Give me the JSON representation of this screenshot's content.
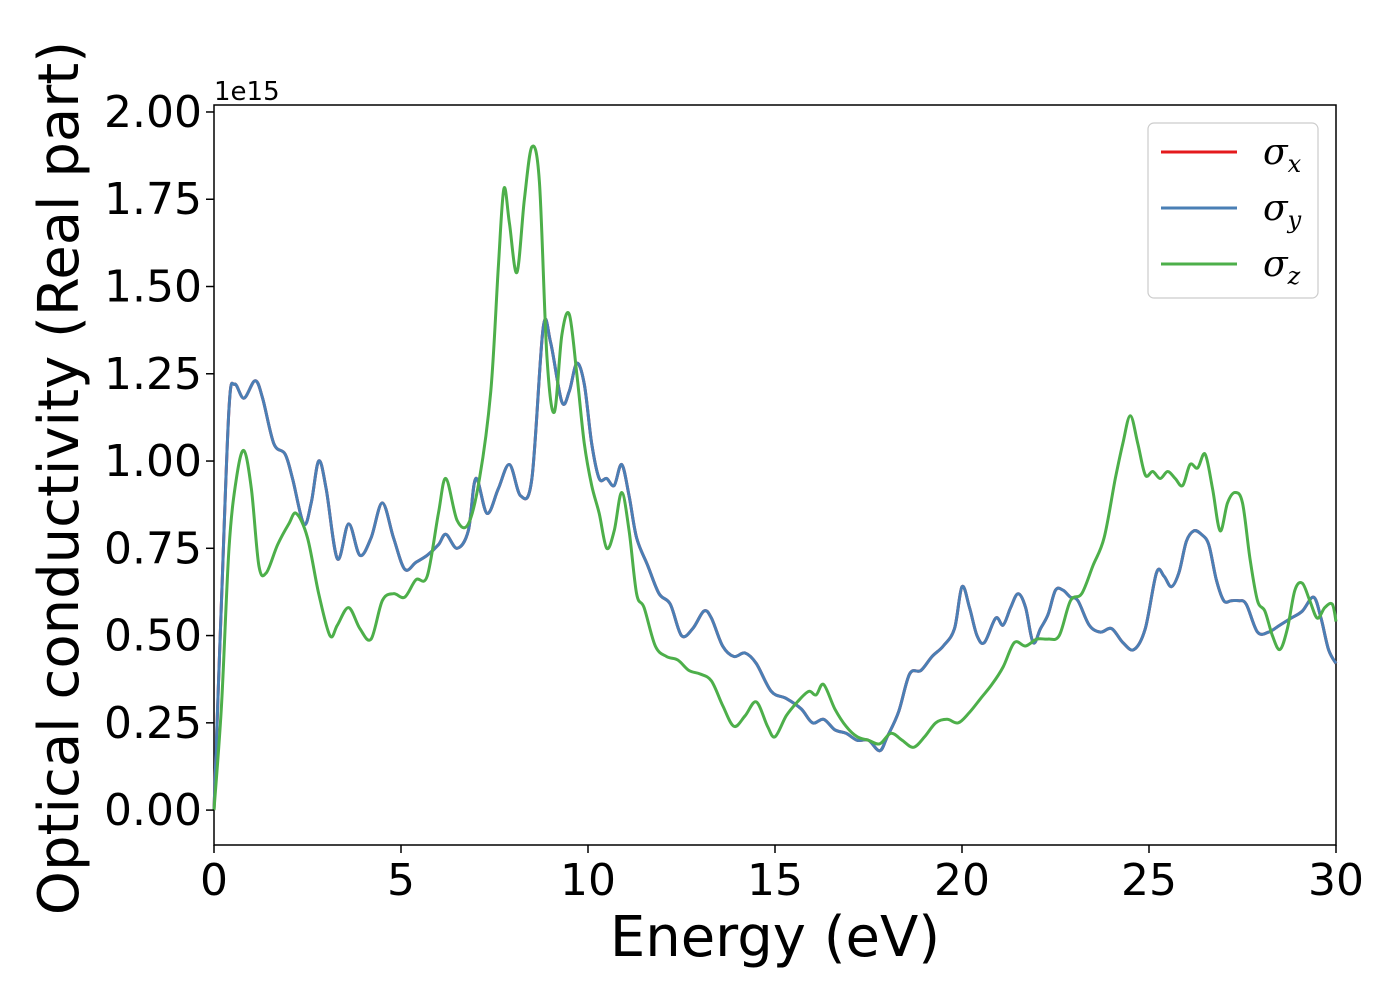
{
  "chart_data": {
    "type": "line",
    "title": "",
    "xlabel": "Energy (eV)",
    "ylabel": "Optical conductivity (Real part)",
    "y_offset_label": "1e15",
    "xlim": [
      0,
      30
    ],
    "ylim": [
      -0.1,
      2.02
    ],
    "x_ticks": [
      0,
      5,
      10,
      15,
      20,
      25,
      30
    ],
    "x_tick_labels": [
      "0",
      "5",
      "10",
      "15",
      "20",
      "25",
      "30"
    ],
    "y_ticks": [
      0,
      0.25,
      0.5,
      0.75,
      1.0,
      1.25,
      1.5,
      1.75,
      2.0
    ],
    "y_tick_labels": [
      "0.00",
      "0.25",
      "0.50",
      "0.75",
      "1.00",
      "1.25",
      "1.50",
      "1.75",
      "2.00"
    ],
    "grid": false,
    "legend_position": "top-right",
    "series": [
      {
        "name": "σ_x",
        "symbol": "σ",
        "subscript": "x",
        "color": "#e41a1c",
        "x": [
          0,
          0.2,
          0.4,
          0.55,
          0.8,
          1.1,
          1.3,
          1.6,
          1.9,
          2.1,
          2.4,
          2.6,
          2.8,
          3.0,
          3.3,
          3.6,
          3.9,
          4.2,
          4.5,
          4.8,
          5.1,
          5.4,
          5.7,
          6.0,
          6.2,
          6.5,
          6.8,
          7.0,
          7.3,
          7.6,
          7.9,
          8.2,
          8.5,
          8.8,
          9.0,
          9.3,
          9.5,
          9.7,
          9.9,
          10.1,
          10.3,
          10.5,
          10.7,
          10.9,
          11.1,
          11.3,
          11.6,
          11.9,
          12.2,
          12.5,
          12.8,
          13.1,
          13.3,
          13.6,
          13.9,
          14.2,
          14.5,
          14.9,
          15.3,
          15.7,
          16.0,
          16.3,
          16.6,
          16.9,
          17.2,
          17.5,
          17.8,
          18.0,
          18.3,
          18.6,
          18.9,
          19.2,
          19.5,
          19.8,
          20.0,
          20.2,
          20.4,
          20.6,
          20.9,
          21.1,
          21.3,
          21.5,
          21.7,
          21.9,
          22.1,
          22.3,
          22.5,
          22.7,
          22.9,
          23.1,
          23.4,
          23.7,
          24.0,
          24.3,
          24.6,
          24.9,
          25.2,
          25.4,
          25.6,
          25.8,
          26.0,
          26.2,
          26.4,
          26.6,
          26.8,
          27.0,
          27.2,
          27.4,
          27.6,
          27.9,
          28.2,
          28.5,
          28.8,
          29.1,
          29.4,
          29.6,
          29.8,
          30
        ],
        "y": [
          0,
          0.6,
          1.15,
          1.22,
          1.18,
          1.23,
          1.18,
          1.05,
          1.02,
          0.95,
          0.82,
          0.88,
          1.0,
          0.92,
          0.72,
          0.82,
          0.73,
          0.78,
          0.88,
          0.78,
          0.69,
          0.71,
          0.73,
          0.76,
          0.79,
          0.75,
          0.8,
          0.95,
          0.85,
          0.92,
          0.99,
          0.9,
          0.95,
          1.38,
          1.34,
          1.17,
          1.2,
          1.28,
          1.22,
          1.05,
          0.95,
          0.95,
          0.93,
          0.99,
          0.9,
          0.78,
          0.7,
          0.62,
          0.59,
          0.5,
          0.52,
          0.57,
          0.55,
          0.47,
          0.44,
          0.45,
          0.42,
          0.34,
          0.32,
          0.29,
          0.25,
          0.26,
          0.23,
          0.22,
          0.2,
          0.2,
          0.17,
          0.21,
          0.28,
          0.39,
          0.4,
          0.44,
          0.47,
          0.52,
          0.64,
          0.58,
          0.5,
          0.48,
          0.55,
          0.53,
          0.58,
          0.62,
          0.58,
          0.48,
          0.52,
          0.56,
          0.63,
          0.63,
          0.61,
          0.6,
          0.53,
          0.51,
          0.52,
          0.48,
          0.46,
          0.52,
          0.68,
          0.67,
          0.64,
          0.68,
          0.77,
          0.8,
          0.79,
          0.76,
          0.66,
          0.6,
          0.6,
          0.6,
          0.59,
          0.51,
          0.51,
          0.53,
          0.55,
          0.57,
          0.61,
          0.55,
          0.46,
          0.42
        ]
      },
      {
        "name": "σ_y",
        "symbol": "σ",
        "subscript": "y",
        "color": "#4a7fb5",
        "x": [
          0,
          0.2,
          0.4,
          0.55,
          0.8,
          1.1,
          1.3,
          1.6,
          1.9,
          2.1,
          2.4,
          2.6,
          2.8,
          3.0,
          3.3,
          3.6,
          3.9,
          4.2,
          4.5,
          4.8,
          5.1,
          5.4,
          5.7,
          6.0,
          6.2,
          6.5,
          6.8,
          7.0,
          7.3,
          7.6,
          7.9,
          8.2,
          8.5,
          8.8,
          9.0,
          9.3,
          9.5,
          9.7,
          9.9,
          10.1,
          10.3,
          10.5,
          10.7,
          10.9,
          11.1,
          11.3,
          11.6,
          11.9,
          12.2,
          12.5,
          12.8,
          13.1,
          13.3,
          13.6,
          13.9,
          14.2,
          14.5,
          14.9,
          15.3,
          15.7,
          16.0,
          16.3,
          16.6,
          16.9,
          17.2,
          17.5,
          17.8,
          18.0,
          18.3,
          18.6,
          18.9,
          19.2,
          19.5,
          19.8,
          20.0,
          20.2,
          20.4,
          20.6,
          20.9,
          21.1,
          21.3,
          21.5,
          21.7,
          21.9,
          22.1,
          22.3,
          22.5,
          22.7,
          22.9,
          23.1,
          23.4,
          23.7,
          24.0,
          24.3,
          24.6,
          24.9,
          25.2,
          25.4,
          25.6,
          25.8,
          26.0,
          26.2,
          26.4,
          26.6,
          26.8,
          27.0,
          27.2,
          27.4,
          27.6,
          27.9,
          28.2,
          28.5,
          28.8,
          29.1,
          29.4,
          29.6,
          29.8,
          30
        ],
        "y": [
          0,
          0.6,
          1.15,
          1.22,
          1.18,
          1.23,
          1.18,
          1.05,
          1.02,
          0.95,
          0.82,
          0.88,
          1.0,
          0.92,
          0.72,
          0.82,
          0.73,
          0.78,
          0.88,
          0.78,
          0.69,
          0.71,
          0.73,
          0.76,
          0.79,
          0.75,
          0.8,
          0.95,
          0.85,
          0.92,
          0.99,
          0.9,
          0.95,
          1.38,
          1.34,
          1.17,
          1.2,
          1.28,
          1.22,
          1.05,
          0.95,
          0.95,
          0.93,
          0.99,
          0.9,
          0.78,
          0.7,
          0.62,
          0.59,
          0.5,
          0.52,
          0.57,
          0.55,
          0.47,
          0.44,
          0.45,
          0.42,
          0.34,
          0.32,
          0.29,
          0.25,
          0.26,
          0.23,
          0.22,
          0.2,
          0.2,
          0.17,
          0.21,
          0.28,
          0.39,
          0.4,
          0.44,
          0.47,
          0.52,
          0.64,
          0.58,
          0.5,
          0.48,
          0.55,
          0.53,
          0.58,
          0.62,
          0.58,
          0.48,
          0.52,
          0.56,
          0.63,
          0.63,
          0.61,
          0.6,
          0.53,
          0.51,
          0.52,
          0.48,
          0.46,
          0.52,
          0.68,
          0.67,
          0.64,
          0.68,
          0.77,
          0.8,
          0.79,
          0.76,
          0.66,
          0.6,
          0.6,
          0.6,
          0.59,
          0.51,
          0.51,
          0.53,
          0.55,
          0.57,
          0.61,
          0.55,
          0.46,
          0.42
        ]
      },
      {
        "name": "σ_z",
        "symbol": "σ",
        "subscript": "z",
        "color": "#4daf4a",
        "x": [
          0,
          0.2,
          0.4,
          0.6,
          0.8,
          1.0,
          1.2,
          1.4,
          1.7,
          2.0,
          2.2,
          2.5,
          2.8,
          3.1,
          3.3,
          3.6,
          3.9,
          4.2,
          4.5,
          4.8,
          5.1,
          5.4,
          5.7,
          6.0,
          6.2,
          6.5,
          6.8,
          7.1,
          7.4,
          7.6,
          7.75,
          7.9,
          8.1,
          8.3,
          8.5,
          8.7,
          8.9,
          9.1,
          9.3,
          9.5,
          9.7,
          9.9,
          10.1,
          10.3,
          10.5,
          10.7,
          10.9,
          11.1,
          11.3,
          11.5,
          11.8,
          12.1,
          12.4,
          12.7,
          13.0,
          13.3,
          13.6,
          13.9,
          14.2,
          14.5,
          14.8,
          15.0,
          15.3,
          15.6,
          15.9,
          16.1,
          16.3,
          16.6,
          16.9,
          17.2,
          17.5,
          17.8,
          18.1,
          18.4,
          18.7,
          19.0,
          19.3,
          19.6,
          19.9,
          20.2,
          20.5,
          20.8,
          21.1,
          21.4,
          21.7,
          22.0,
          22.3,
          22.6,
          22.9,
          23.2,
          23.5,
          23.8,
          24.1,
          24.3,
          24.5,
          24.7,
          24.9,
          25.1,
          25.3,
          25.5,
          25.7,
          25.9,
          26.1,
          26.3,
          26.5,
          26.7,
          26.9,
          27.1,
          27.3,
          27.5,
          27.7,
          27.9,
          28.1,
          28.3,
          28.5,
          28.7,
          28.9,
          29.1,
          29.3,
          29.5,
          29.7,
          29.9,
          30
        ],
        "y": [
          0,
          0.3,
          0.75,
          0.95,
          1.03,
          0.92,
          0.7,
          0.68,
          0.76,
          0.82,
          0.85,
          0.78,
          0.62,
          0.5,
          0.53,
          0.58,
          0.52,
          0.49,
          0.6,
          0.62,
          0.61,
          0.66,
          0.67,
          0.85,
          0.95,
          0.83,
          0.82,
          0.95,
          1.2,
          1.55,
          1.78,
          1.68,
          1.54,
          1.75,
          1.9,
          1.8,
          1.3,
          1.14,
          1.36,
          1.42,
          1.25,
          1.05,
          0.93,
          0.85,
          0.75,
          0.8,
          0.91,
          0.8,
          0.62,
          0.58,
          0.47,
          0.44,
          0.43,
          0.4,
          0.39,
          0.37,
          0.3,
          0.24,
          0.27,
          0.31,
          0.24,
          0.21,
          0.27,
          0.31,
          0.34,
          0.33,
          0.36,
          0.29,
          0.24,
          0.21,
          0.2,
          0.19,
          0.22,
          0.2,
          0.18,
          0.21,
          0.25,
          0.26,
          0.25,
          0.28,
          0.32,
          0.36,
          0.41,
          0.48,
          0.47,
          0.49,
          0.49,
          0.5,
          0.6,
          0.62,
          0.7,
          0.78,
          0.95,
          1.05,
          1.13,
          1.05,
          0.96,
          0.97,
          0.95,
          0.97,
          0.95,
          0.93,
          0.99,
          0.98,
          1.02,
          0.92,
          0.8,
          0.88,
          0.91,
          0.88,
          0.72,
          0.6,
          0.57,
          0.5,
          0.46,
          0.52,
          0.63,
          0.65,
          0.6,
          0.55,
          0.58,
          0.59,
          0.54
        ]
      }
    ]
  }
}
